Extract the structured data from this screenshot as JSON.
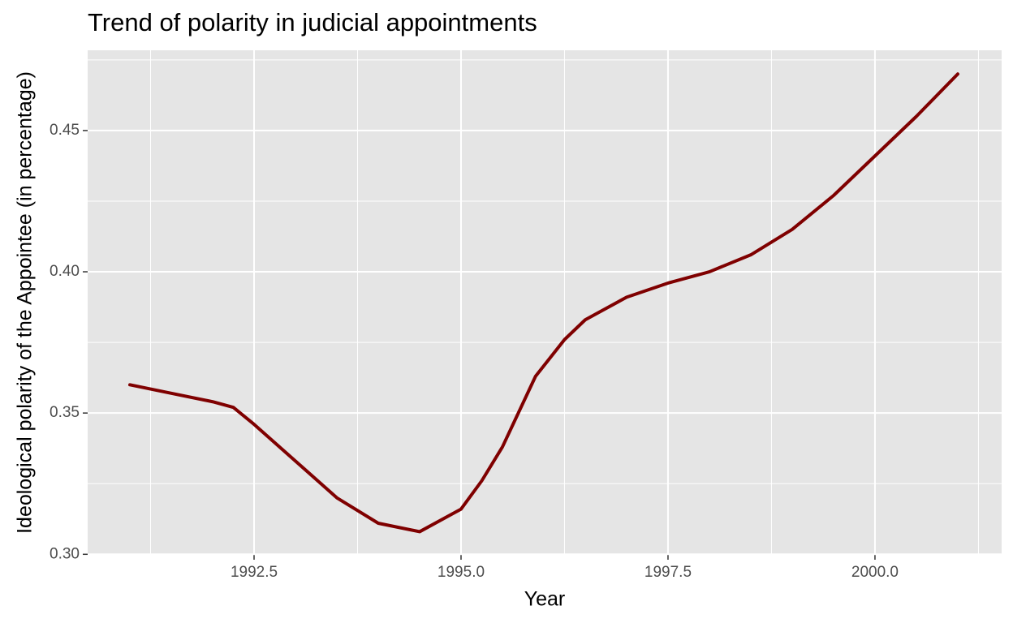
{
  "chart_data": {
    "type": "line",
    "title": "Trend of polarity in judicial appointments",
    "x_label": "Year",
    "y_label": "Ideological polarity of the Appointee (in percentage)",
    "x": [
      1991,
      1991.5,
      1992,
      1992.25,
      1992.5,
      1993,
      1993.5,
      1994,
      1994.5,
      1995,
      1995.25,
      1995.5,
      1995.9,
      1996.25,
      1996.5,
      1997,
      1997.5,
      1998,
      1998.5,
      1999,
      1999.5,
      2000,
      2000.5,
      2001
    ],
    "series": [
      {
        "color": "#7f0000",
        "values": [
          0.36,
          0.357,
          0.354,
          0.352,
          0.346,
          0.333,
          0.32,
          0.311,
          0.308,
          0.316,
          0.326,
          0.338,
          0.363,
          0.376,
          0.383,
          0.391,
          0.396,
          0.4,
          0.406,
          0.415,
          0.427,
          0.441,
          0.455,
          0.47
        ]
      }
    ],
    "xlim": [
      1990.49,
      2001.53
    ],
    "ylim": [
      0.2998,
      0.4784
    ],
    "xticks": [
      {
        "value": 1992.5,
        "label": "1992.5"
      },
      {
        "value": 1995,
        "label": "1995.0"
      },
      {
        "value": 1997.5,
        "label": "1997.5"
      },
      {
        "value": 2000,
        "label": "2000.0"
      }
    ],
    "yticks": [
      {
        "value": 0.3,
        "label": "0.30"
      },
      {
        "value": 0.35,
        "label": "0.35"
      },
      {
        "value": 0.4,
        "label": "0.40"
      },
      {
        "value": 0.45,
        "label": "0.45"
      }
    ],
    "grid": true
  }
}
